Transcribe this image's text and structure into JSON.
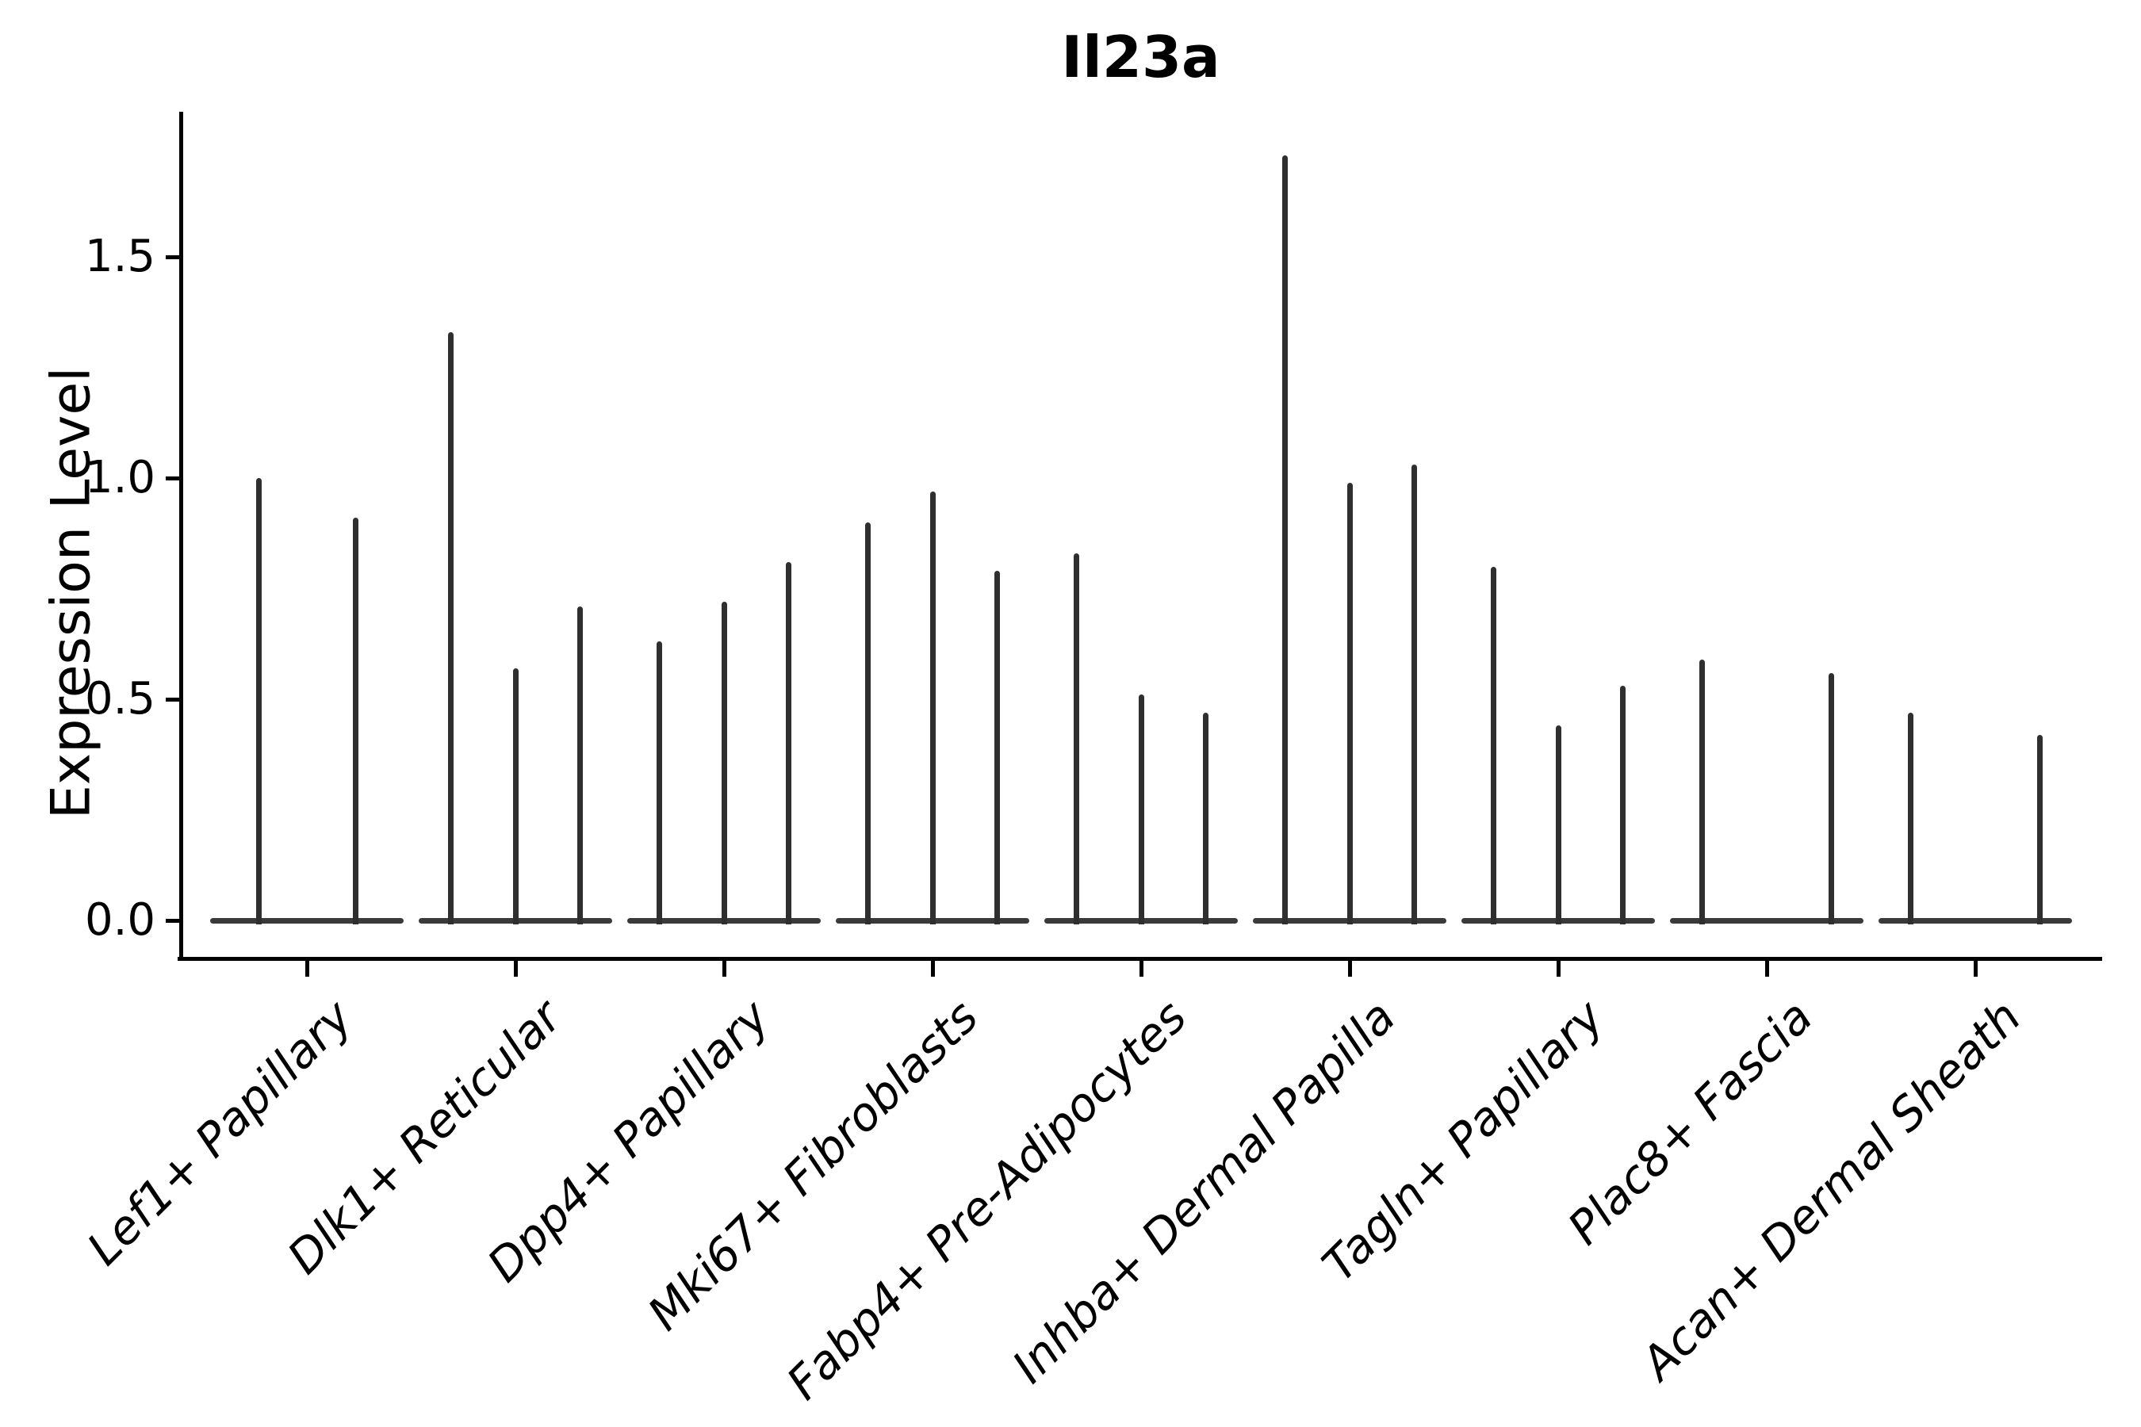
{
  "title": "Il23a",
  "y_axis_label": "Expression Level",
  "chart_data": {
    "type": "violin",
    "title": "Il23a",
    "xlabel": "",
    "ylabel": "Expression Level",
    "ylim": [
      0,
      1.83
    ],
    "ytick_labels": [
      "0.0",
      "0.5",
      "1.0",
      "1.5"
    ],
    "ytick_values": [
      0.0,
      0.5,
      1.0,
      1.5
    ],
    "grid": false,
    "legend_position": "none",
    "x_label_rotation_deg": 45,
    "x_labels_italic": true,
    "categories": [
      "Lef1+ Papillary",
      "Dlk1+ Reticular",
      "Dpp4+ Papillary",
      "Mki67+ Fibroblasts",
      "Fabp4+ Pre-Adipocytes",
      "Inhba+ Dermal Papilla",
      "Tagln+ Papillary",
      "Plac8+ Fascia",
      "Acan+ Dermal Sheath"
    ],
    "groups": [
      {
        "category": "Lef1+ Papillary",
        "violins": [
          {
            "offset": -0.25,
            "peak": 1.0
          },
          {
            "offset": 0.25,
            "peak": 0.91
          }
        ]
      },
      {
        "category": "Dlk1+ Reticular",
        "violins": [
          {
            "offset": -0.333,
            "peak": 1.33
          },
          {
            "offset": 0,
            "peak": 0.57
          },
          {
            "offset": 0.333,
            "peak": 0.71
          }
        ]
      },
      {
        "category": "Dpp4+ Papillary",
        "violins": [
          {
            "offset": -0.333,
            "peak": 0.63
          },
          {
            "offset": 0,
            "peak": 0.72
          },
          {
            "offset": 0.333,
            "peak": 0.81
          }
        ]
      },
      {
        "category": "Mki67+ Fibroblasts",
        "violins": [
          {
            "offset": -0.333,
            "peak": 0.9
          },
          {
            "offset": 0,
            "peak": 0.97
          },
          {
            "offset": 0.333,
            "peak": 0.79
          }
        ]
      },
      {
        "category": "Fabp4+ Pre-Adipocytes",
        "violins": [
          {
            "offset": -0.333,
            "peak": 0.83
          },
          {
            "offset": 0,
            "peak": 0.51
          },
          {
            "offset": 0.333,
            "peak": 0.47
          }
        ]
      },
      {
        "category": "Inhba+ Dermal Papilla",
        "violins": [
          {
            "offset": -0.333,
            "peak": 1.73
          },
          {
            "offset": 0,
            "peak": 0.99
          },
          {
            "offset": 0.333,
            "peak": 1.03
          }
        ]
      },
      {
        "category": "Tagln+ Papillary",
        "violins": [
          {
            "offset": -0.333,
            "peak": 0.8
          },
          {
            "offset": 0,
            "peak": 0.44
          },
          {
            "offset": 0.333,
            "peak": 0.53
          }
        ]
      },
      {
        "category": "Plac8+ Fascia",
        "violins": [
          {
            "offset": -0.333,
            "peak": 0.59
          },
          {
            "offset": 0.333,
            "peak": 0.56
          }
        ]
      },
      {
        "category": "Acan+ Dermal Sheath",
        "violins": [
          {
            "offset": -0.333,
            "peak": 0.47
          },
          {
            "offset": 0.333,
            "peak": 0.42
          }
        ]
      }
    ],
    "colors": {
      "violin": "#2f2f2f",
      "baseline": "#3a3a3a",
      "axis": "#000000",
      "text": "#000000",
      "background": "#ffffff"
    }
  }
}
